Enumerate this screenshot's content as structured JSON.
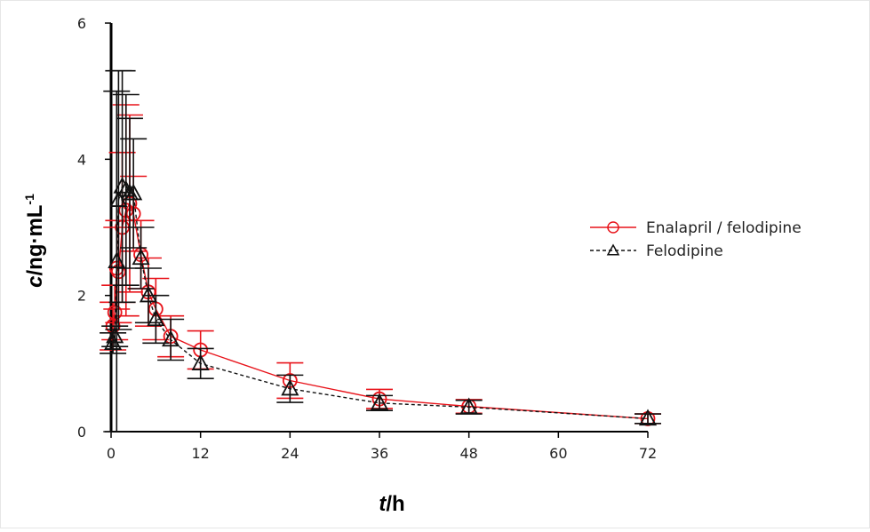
{
  "chart_data": {
    "type": "line",
    "xlabel": {
      "var": "t",
      "unit": "/h"
    },
    "ylabel": {
      "var": "c",
      "unit": "/ng·mL",
      "sup": "-1"
    },
    "xlim": [
      0,
      72
    ],
    "ylim": [
      0,
      6
    ],
    "xticks": [
      0,
      12,
      24,
      36,
      48,
      60,
      72
    ],
    "yticks": [
      0,
      2,
      4,
      6
    ],
    "grid": false,
    "legend_position": "right",
    "series": [
      {
        "name": "Enalapril / felodipine",
        "color": "#e8131a",
        "marker": "circle",
        "line": "solid",
        "points": [
          {
            "x": 0.25,
            "y": 1.55,
            "err": 0.35
          },
          {
            "x": 0.5,
            "y": 1.75,
            "err": 0.4
          },
          {
            "x": 0.75,
            "y": 2.4,
            "err": 0.6
          },
          {
            "x": 1,
            "y": 2.35,
            "err": 0.75
          },
          {
            "x": 1.5,
            "y": 3.0,
            "err": 1.1
          },
          {
            "x": 2,
            "y": 3.25,
            "err": 1.55
          },
          {
            "x": 2.5,
            "y": 3.35,
            "err": 1.3
          },
          {
            "x": 3,
            "y": 3.2,
            "err": 0.55
          },
          {
            "x": 4,
            "y": 2.6,
            "err": 0.5
          },
          {
            "x": 5,
            "y": 2.05,
            "err": 0.5
          },
          {
            "x": 6,
            "y": 1.8,
            "err": 0.45
          },
          {
            "x": 8,
            "y": 1.4,
            "err": 0.3
          },
          {
            "x": 12,
            "y": 1.2,
            "err": 0.28
          },
          {
            "x": 24,
            "y": 0.75,
            "err": 0.26
          },
          {
            "x": 36,
            "y": 0.48,
            "err": 0.14
          },
          {
            "x": 48,
            "y": 0.37,
            "err": 0.1
          },
          {
            "x": 72,
            "y": 0.19,
            "err": 0.07
          }
        ]
      },
      {
        "name": "Felodipine",
        "color": "#111111",
        "marker": "triangle",
        "line": "dashed",
        "points": [
          {
            "x": 0.25,
            "y": 1.3,
            "err": 0.15
          },
          {
            "x": 0.5,
            "y": 1.4,
            "err": 0.15
          },
          {
            "x": 0.75,
            "y": 2.5,
            "err": 2.5
          },
          {
            "x": 1,
            "y": 3.4,
            "err": 1.9
          },
          {
            "x": 1.5,
            "y": 3.6,
            "err": 1.7
          },
          {
            "x": 2,
            "y": 3.55,
            "err": 1.4
          },
          {
            "x": 2.5,
            "y": 3.5,
            "err": 1.1
          },
          {
            "x": 3,
            "y": 3.5,
            "err": 0.8
          },
          {
            "x": 4,
            "y": 2.55,
            "err": 0.45
          },
          {
            "x": 5,
            "y": 2.0,
            "err": 0.4
          },
          {
            "x": 6,
            "y": 1.65,
            "err": 0.35
          },
          {
            "x": 8,
            "y": 1.35,
            "err": 0.3
          },
          {
            "x": 12,
            "y": 1.0,
            "err": 0.22
          },
          {
            "x": 24,
            "y": 0.63,
            "err": 0.2
          },
          {
            "x": 36,
            "y": 0.42,
            "err": 0.11
          },
          {
            "x": 48,
            "y": 0.36,
            "err": 0.1
          },
          {
            "x": 72,
            "y": 0.19,
            "err": 0.07
          }
        ]
      }
    ]
  }
}
